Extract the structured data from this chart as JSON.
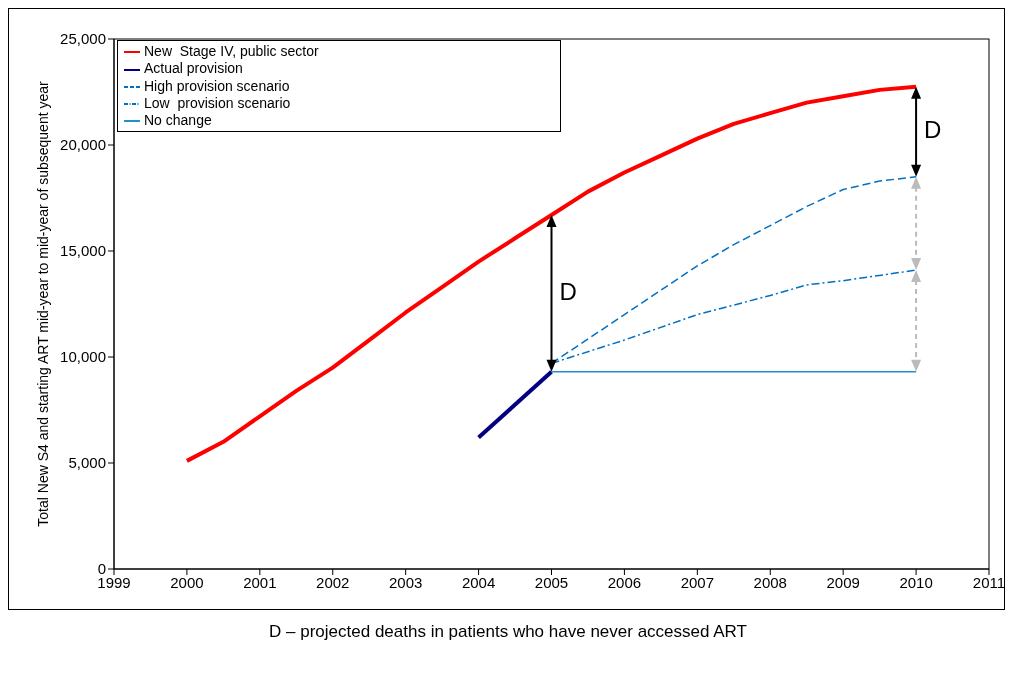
{
  "chart_data": {
    "type": "line",
    "ylabel": "Total New S4 and starting ART mid-year to mid-year of subsequent year",
    "xlim": [
      1999,
      2011
    ],
    "xticks": [
      1999,
      2000,
      2001,
      2002,
      2003,
      2004,
      2005,
      2006,
      2007,
      2008,
      2009,
      2010,
      2011
    ],
    "ylim": [
      0,
      25000
    ],
    "yticks": [
      0,
      {
        "value": 5000,
        "label": "5,000"
      },
      {
        "value": 10000,
        "label": "10,000"
      },
      {
        "value": 15000,
        "label": "15,000"
      },
      {
        "value": 20000,
        "label": "20,000"
      },
      {
        "value": 25000,
        "label": "25,000"
      }
    ],
    "grid": false,
    "legend": "top left",
    "marker": "none",
    "series": [
      {
        "name": "New  Stage IV, public sector",
        "color": "#ff0000",
        "line_style": "solid",
        "x": [
          2000,
          2000.5,
          2001,
          2001.5,
          2002,
          2002.5,
          2003,
          2003.5,
          2004,
          2004.5,
          2005,
          2005.5,
          2006,
          2006.5,
          2007,
          2007.5,
          2008,
          2008.5,
          2009,
          2009.5,
          2010
        ],
        "values": [
          5100,
          6000,
          7200,
          8400,
          9500,
          10800,
          12100,
          13300,
          14500,
          15600,
          16700,
          17800,
          18700,
          19500,
          20300,
          21000,
          21500,
          22000,
          22300,
          22600,
          22750
        ]
      },
      {
        "name": "Actual provision",
        "color": "#000080",
        "line_style": "solid",
        "x": [
          2004,
          2005
        ],
        "values": [
          6200,
          9300
        ]
      },
      {
        "name": "High provision scenario",
        "color": "#0070c0",
        "line_style": "dashed",
        "x": [
          2005,
          2006,
          2007,
          2007.5,
          2008,
          2008.5,
          2009,
          2009.5,
          2010
        ],
        "values": [
          9700,
          12000,
          14300,
          15300,
          16200,
          17100,
          17900,
          18300,
          18500
        ]
      },
      {
        "name": "Low  provision scenario",
        "color": "#0070c0",
        "line_style": "dashdot",
        "x": [
          2005,
          2006,
          2007,
          2008,
          2008.5,
          2009,
          2010
        ],
        "values": [
          9700,
          10800,
          12000,
          12900,
          13400,
          13600,
          14100
        ]
      },
      {
        "name": "No change",
        "color": "#1f8fd0",
        "line_style": "solid",
        "x": [
          2005,
          2010
        ],
        "values": [
          9300,
          9300
        ]
      }
    ],
    "annotations": [
      "D",
      "D",
      "D – projected deaths in patients who have never accessed ART"
    ]
  }
}
